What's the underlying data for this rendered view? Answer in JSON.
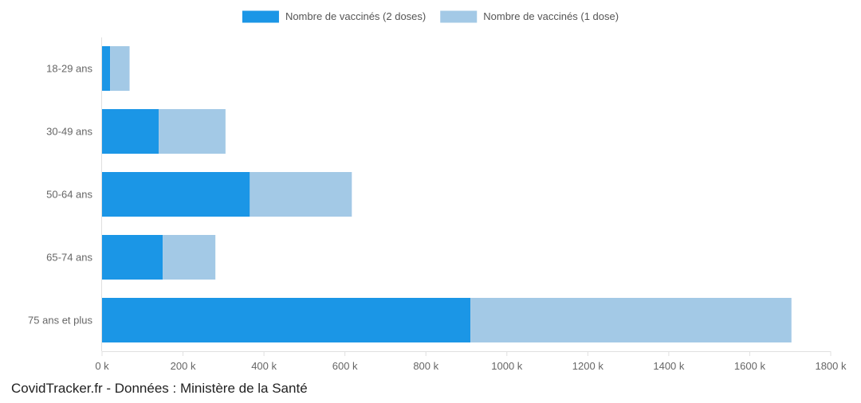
{
  "chart_data": {
    "type": "bar",
    "orientation": "horizontal",
    "stacked": true,
    "categories": [
      "18-29 ans",
      "30-49 ans",
      "50-64 ans",
      "65-74 ans",
      "75 ans et plus"
    ],
    "series": [
      {
        "name": "Nombre de vaccinés (2 doses)",
        "color": "#1b96e6",
        "values": [
          20,
          140,
          365,
          150,
          910
        ]
      },
      {
        "name": "Nombre de vaccinés (1 dose)",
        "color": "#a3c9e6",
        "values": [
          48,
          165,
          252,
          130,
          793
        ]
      }
    ],
    "xlim": [
      0,
      1800
    ],
    "xticks": [
      0,
      200,
      400,
      600,
      800,
      1000,
      1200,
      1400,
      1600,
      1800
    ],
    "xtick_labels": [
      "0 k",
      "200 k",
      "400 k",
      "600 k",
      "800 k",
      "1000 k",
      "1200 k",
      "1400 k",
      "1600 k",
      "1800 k"
    ],
    "xlabel": "",
    "ylabel": "",
    "grid": false,
    "legend_position": "top-center"
  },
  "source": "CovidTracker.fr - Données : Ministère de la Santé"
}
